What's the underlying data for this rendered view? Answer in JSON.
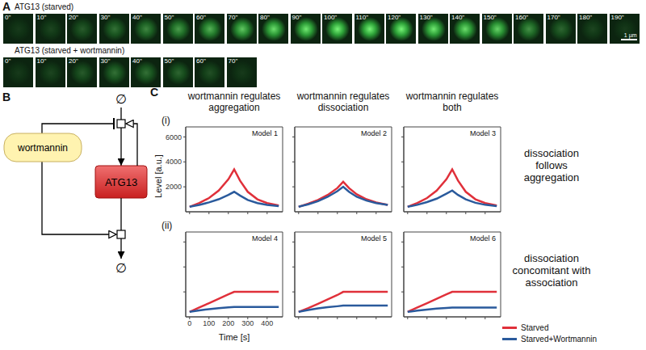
{
  "panel_a": {
    "label": "A",
    "scale_bar": "1 µm",
    "rows": [
      {
        "title": "ATG13 (starved)",
        "frames": [
          "0\"",
          "10\"",
          "20\"",
          "30\"",
          "40\"",
          "50\"",
          "60\"",
          "70\"",
          "80\"",
          "90\"",
          "100\"",
          "110\"",
          "120\"",
          "130\"",
          "140\"",
          "150\"",
          "160\"",
          "170\"",
          "180\"",
          "190\""
        ],
        "brightness": [
          0.1,
          0.15,
          0.25,
          0.35,
          0.45,
          0.55,
          0.65,
          0.75,
          0.85,
          0.9,
          0.95,
          0.95,
          0.95,
          0.9,
          0.85,
          0.8,
          0.5,
          0.3,
          0.15,
          0.1
        ]
      },
      {
        "title": "ATG13 (starved + wortmannin)",
        "frames": [
          "0\"",
          "10\"",
          "20\"",
          "30\"",
          "40\"",
          "50\"",
          "60\"",
          "70\""
        ],
        "brightness": [
          0.1,
          0.15,
          0.25,
          0.35,
          0.35,
          0.3,
          0.2,
          0.1
        ]
      }
    ]
  },
  "panel_b": {
    "label": "B",
    "wortmannin": "wortmannin",
    "atg13": "ATG13",
    "source": "∅",
    "sink": "∅"
  },
  "panel_c": {
    "label": "C",
    "columns": [
      "wortmannin regulates aggregation",
      "wortmannin regulates dissociation",
      "wortmannin regulates both"
    ],
    "rows": [
      {
        "label": "(i)",
        "description": "dissociation follows aggregation"
      },
      {
        "label": "(ii)",
        "description": "dissociation concomitant with association"
      }
    ],
    "y_label": "Level [a.u.]",
    "x_label": "Time [s]"
  },
  "chart_data": [
    {
      "type": "line",
      "title": "Model 1",
      "x": [
        0,
        50,
        100,
        150,
        200,
        230,
        260,
        300,
        350,
        400,
        460
      ],
      "series": [
        {
          "name": "Starved",
          "color": "#e0303a",
          "values": [
            400,
            700,
            1100,
            1700,
            2600,
            3400,
            2500,
            1600,
            1000,
            700,
            500
          ]
        },
        {
          "name": "Starved+Wortmannin",
          "color": "#2a5a9c",
          "values": [
            400,
            550,
            750,
            1000,
            1350,
            1600,
            1300,
            950,
            700,
            550,
            450
          ]
        }
      ],
      "xlim": [
        -20,
        480
      ],
      "ylim": [
        0,
        6800
      ],
      "xticks": [
        0,
        100,
        200,
        300,
        400
      ],
      "yticks": [
        2000,
        4000,
        6000
      ],
      "tick_labels": "y"
    },
    {
      "type": "line",
      "title": "Model 2",
      "x": [
        0,
        50,
        100,
        150,
        200,
        230,
        260,
        300,
        350,
        400,
        460
      ],
      "series": [
        {
          "name": "Starved",
          "color": "#e0303a",
          "values": [
            400,
            650,
            950,
            1350,
            1900,
            2400,
            1900,
            1400,
            1000,
            750,
            550
          ]
        },
        {
          "name": "Starved+Wortmannin",
          "color": "#2a5a9c",
          "values": [
            400,
            600,
            850,
            1200,
            1650,
            2000,
            1600,
            1200,
            900,
            700,
            550
          ]
        }
      ],
      "xlim": [
        -20,
        480
      ],
      "ylim": [
        0,
        6800
      ],
      "xticks": [
        0,
        100,
        200,
        300,
        400
      ],
      "yticks": [
        2000,
        4000,
        6000
      ],
      "tick_labels": false
    },
    {
      "type": "line",
      "title": "Model 3",
      "x": [
        0,
        50,
        100,
        150,
        200,
        230,
        260,
        300,
        350,
        400,
        460
      ],
      "series": [
        {
          "name": "Starved",
          "color": "#e0303a",
          "values": [
            400,
            700,
            1100,
            1700,
            2600,
            3400,
            2500,
            1600,
            1000,
            700,
            500
          ]
        },
        {
          "name": "Starved+Wortmannin",
          "color": "#2a5a9c",
          "values": [
            400,
            560,
            780,
            1050,
            1450,
            1700,
            1350,
            1000,
            720,
            560,
            450
          ]
        }
      ],
      "xlim": [
        -20,
        480
      ],
      "ylim": [
        0,
        6800
      ],
      "xticks": [
        0,
        100,
        200,
        300,
        400
      ],
      "yticks": [
        2000,
        4000,
        6000
      ],
      "tick_labels": false
    },
    {
      "type": "line",
      "title": "Model 4",
      "x": [
        0,
        50,
        100,
        150,
        200,
        230,
        260,
        300,
        350,
        400,
        460
      ],
      "series": [
        {
          "name": "Starved",
          "color": "#e0303a",
          "values": [
            400,
            750,
            1100,
            1450,
            1800,
            2000,
            2000,
            2000,
            2000,
            2000,
            2000
          ]
        },
        {
          "name": "Starved+Wortmannin",
          "color": "#2a5a9c",
          "values": [
            400,
            520,
            620,
            700,
            760,
            800,
            800,
            800,
            800,
            800,
            800
          ]
        }
      ],
      "xlim": [
        -20,
        480
      ],
      "ylim": [
        0,
        6800
      ],
      "xticks": [
        0,
        100,
        200,
        300,
        400
      ],
      "yticks": [
        2000,
        4000,
        6000
      ],
      "tick_labels": "x"
    },
    {
      "type": "line",
      "title": "Model 5",
      "x": [
        0,
        50,
        100,
        150,
        200,
        230,
        260,
        300,
        350,
        400,
        460
      ],
      "series": [
        {
          "name": "Starved",
          "color": "#e0303a",
          "values": [
            400,
            700,
            1050,
            1400,
            1750,
            2000,
            2000,
            2000,
            2000,
            2000,
            2000
          ]
        },
        {
          "name": "Starved+Wortmannin",
          "color": "#2a5a9c",
          "values": [
            400,
            550,
            680,
            780,
            850,
            900,
            900,
            900,
            900,
            900,
            900
          ]
        }
      ],
      "xlim": [
        -20,
        480
      ],
      "ylim": [
        0,
        6800
      ],
      "xticks": [
        0,
        100,
        200,
        300,
        400
      ],
      "yticks": [
        2000,
        4000,
        6000
      ],
      "tick_labels": false
    },
    {
      "type": "line",
      "title": "Model 6",
      "x": [
        0,
        50,
        100,
        150,
        200,
        230,
        260,
        300,
        350,
        400,
        460
      ],
      "series": [
        {
          "name": "Starved",
          "color": "#e0303a",
          "values": [
            400,
            750,
            1100,
            1450,
            1800,
            2000,
            2000,
            2000,
            2000,
            2000,
            2000
          ]
        },
        {
          "name": "Starved+Wortmannin",
          "color": "#2a5a9c",
          "values": [
            400,
            500,
            590,
            660,
            720,
            750,
            750,
            750,
            750,
            750,
            750
          ]
        }
      ],
      "xlim": [
        -20,
        480
      ],
      "ylim": [
        0,
        6800
      ],
      "xticks": [
        0,
        100,
        200,
        300,
        400
      ],
      "yticks": [
        2000,
        4000,
        6000
      ],
      "tick_labels": false
    }
  ]
}
